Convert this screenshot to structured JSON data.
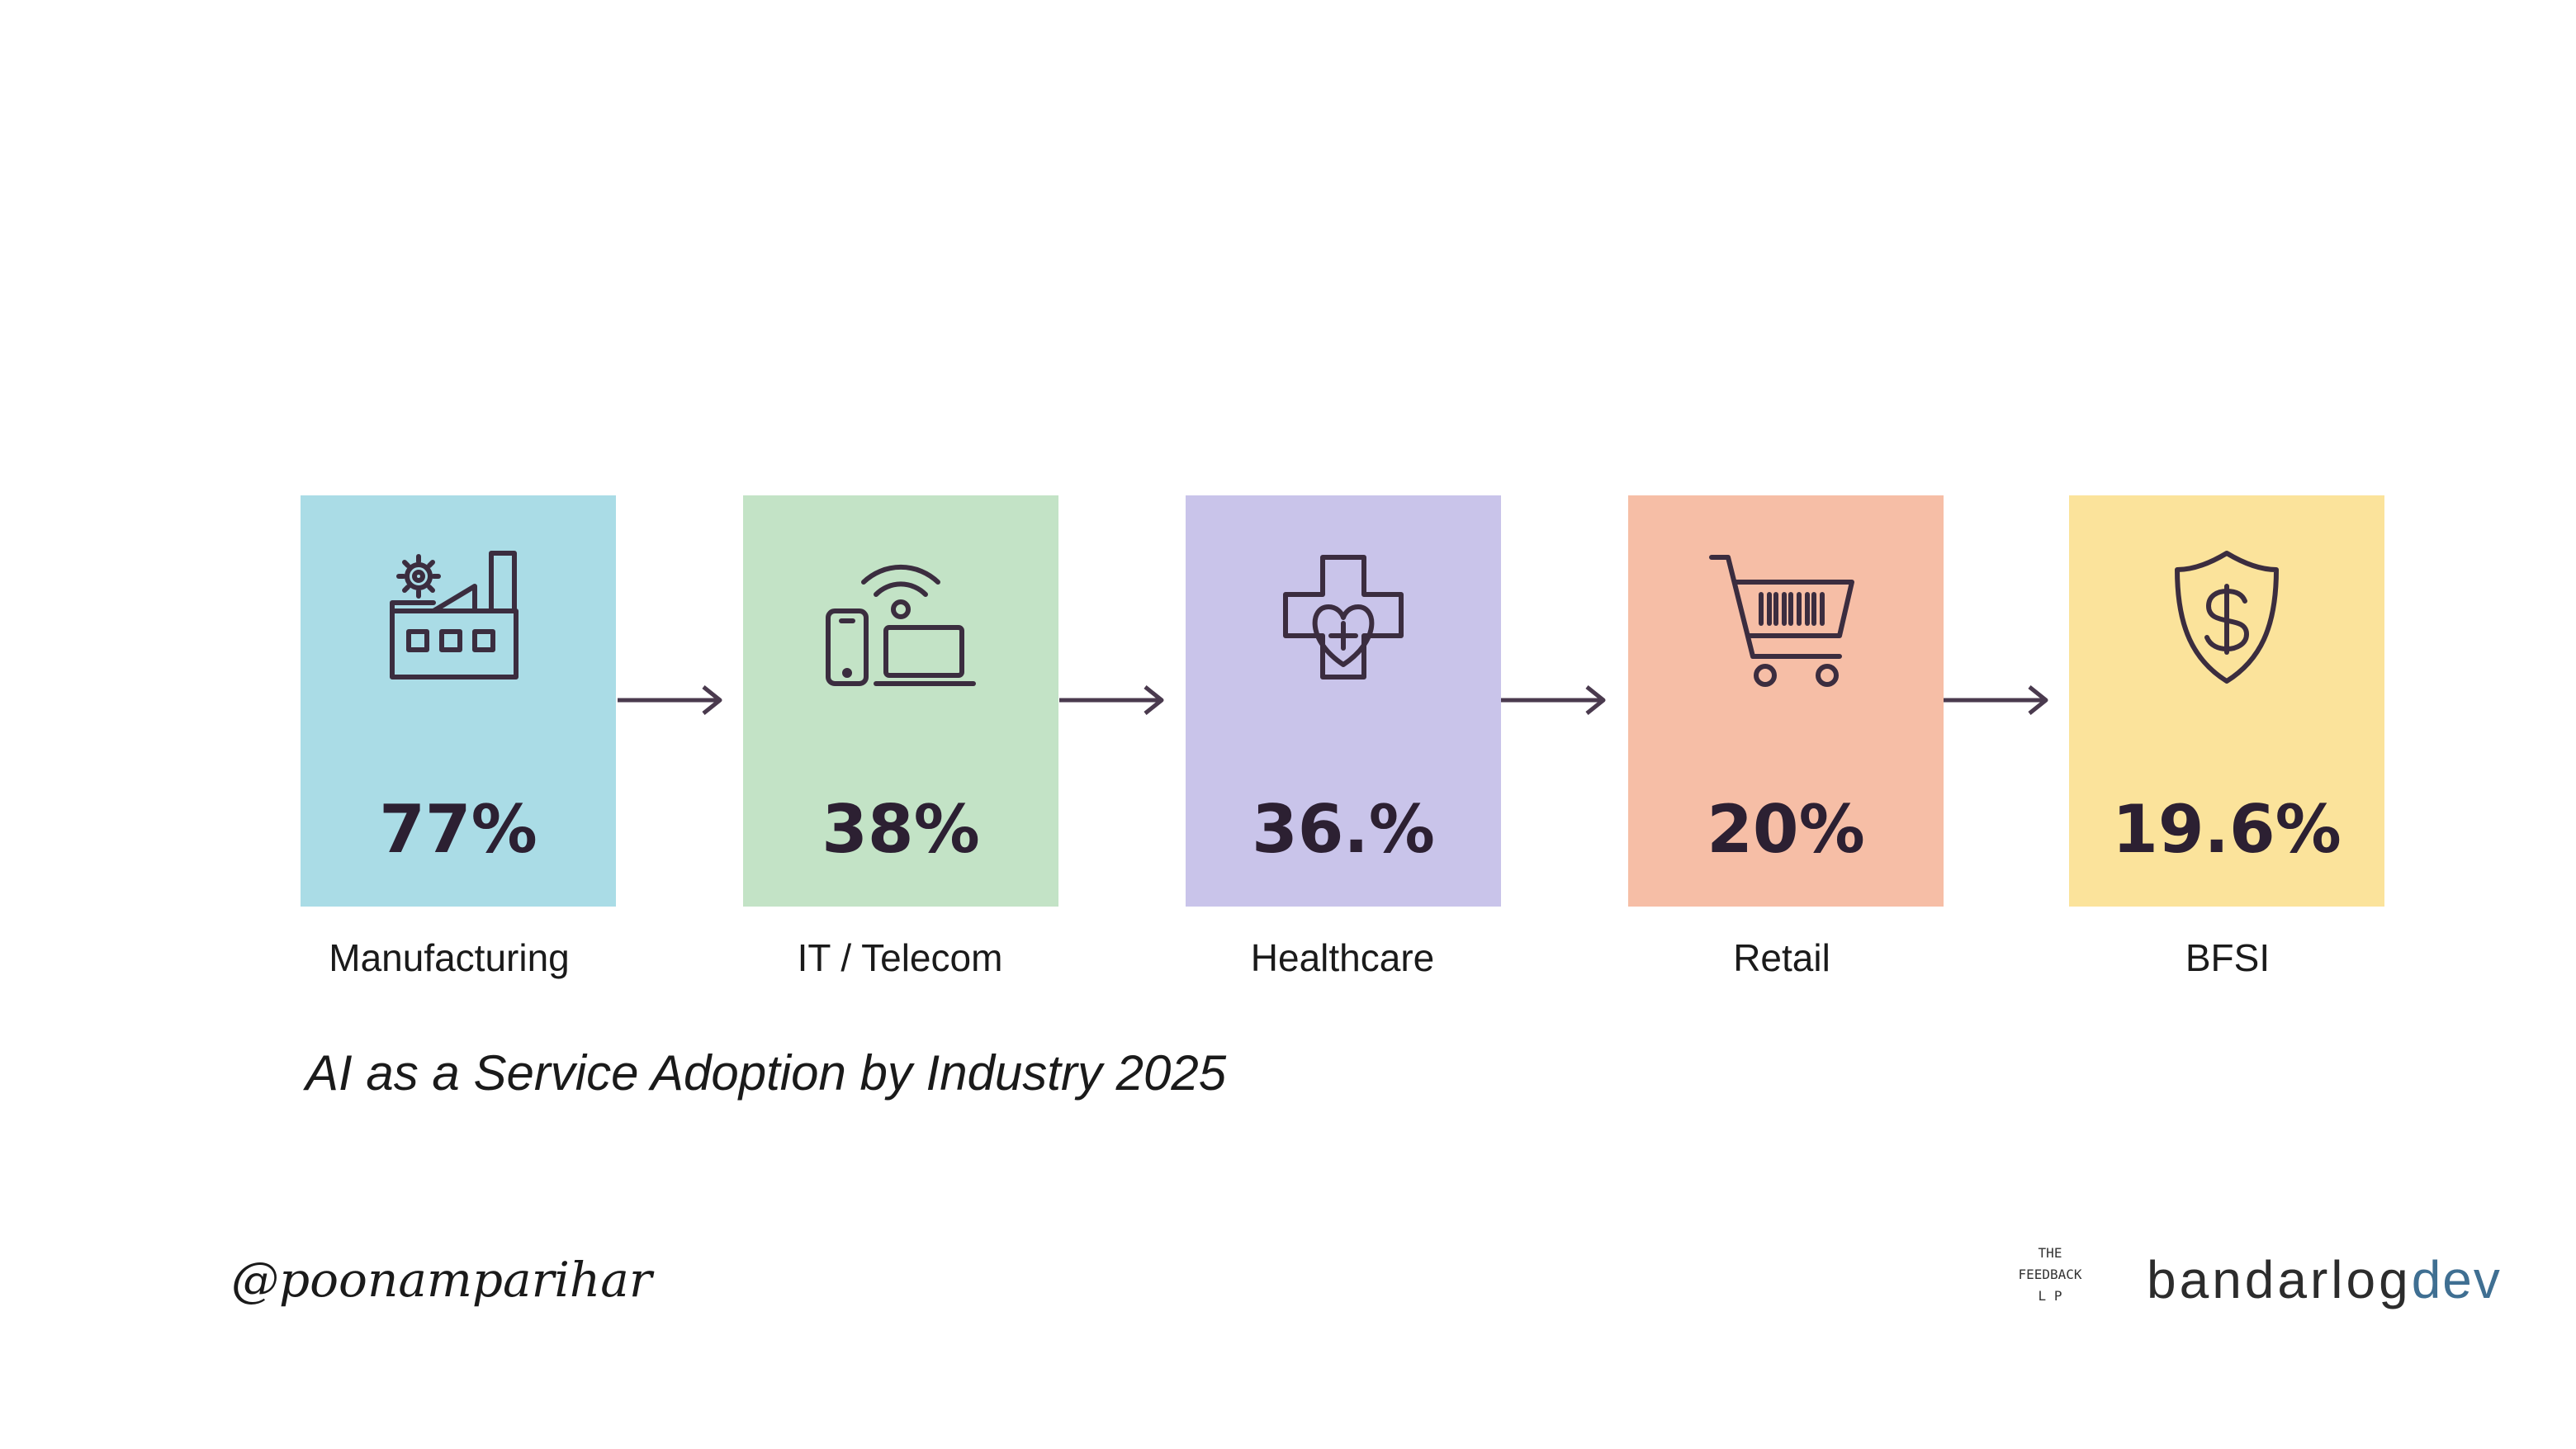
{
  "chart_data": {
    "type": "bar",
    "title": "AI as a Service Adoption by Industry 2025",
    "categories": [
      "Manufacturing",
      "IT / Telecom",
      "Healthcare",
      "Retail",
      "BFSI"
    ],
    "values": [
      77,
      38,
      36,
      20,
      19.6
    ],
    "value_labels": [
      "77%",
      "38%",
      "36.%",
      "20%",
      "19.6%"
    ],
    "colors": [
      "#aadce6",
      "#c3e3c6",
      "#c9c4ea",
      "#f6bea6",
      "#fbe39b"
    ],
    "icons": [
      "factory-icon",
      "devices-wifi-icon",
      "medical-cross-heart-icon",
      "shopping-cart-icon",
      "shield-dollar-icon"
    ],
    "unit": "%"
  },
  "footer": {
    "handle": "@poonamparihar",
    "feedback_logo_line1": "THE",
    "feedback_logo_line2": "FEEDBACK",
    "feedback_logo_line3": "L P",
    "brand_main": "bandarlog",
    "brand_suffix": "dev"
  }
}
